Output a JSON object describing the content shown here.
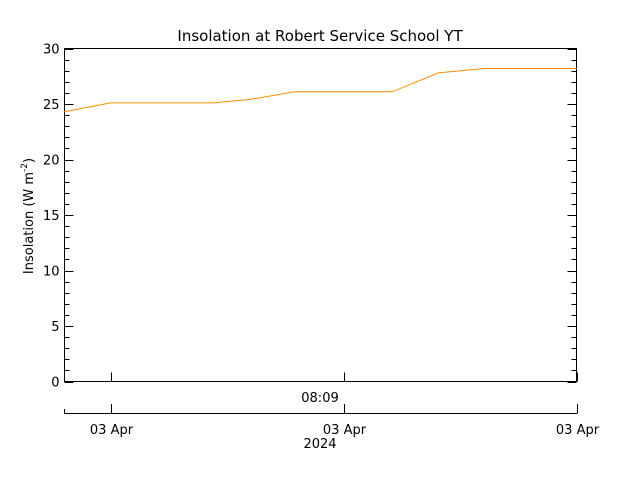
{
  "chart_data": {
    "type": "line",
    "title": "Insolation at Robert Service School YT",
    "ylabel_main": "Insolation (W m",
    "ylabel_sup": "-2",
    "ylabel_close": ")",
    "xlabel": "",
    "ylim": [
      0,
      30
    ],
    "y_ticks": [
      0,
      5,
      10,
      15,
      20,
      25,
      30
    ],
    "series": [
      {
        "color": "#ff8c00",
        "x": [
          0,
          0.09,
          0.29,
          0.36,
          0.45,
          0.64,
          0.73,
          0.82,
          1.0
        ],
        "values": [
          24.3,
          25.1,
          25.1,
          25.4,
          26.1,
          26.1,
          27.8,
          28.2,
          28.2
        ]
      }
    ],
    "time_axis": {
      "top_label": "08:09",
      "ticks": [
        {
          "pos": 0.09,
          "label": "03 Apr"
        },
        {
          "pos": 0.545,
          "label": "03 Apr"
        },
        {
          "pos": 1.0,
          "label": "03 Apr"
        }
      ],
      "year_label": "2024"
    }
  }
}
